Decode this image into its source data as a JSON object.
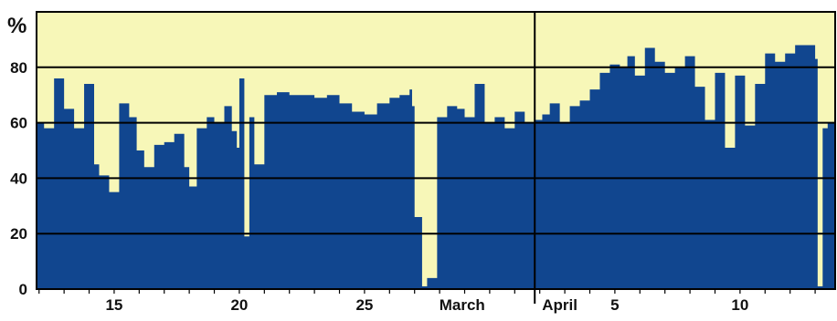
{
  "chart_data": {
    "type": "area",
    "title": "",
    "xlabel": "",
    "ylabel": "%",
    "ylim": [
      0,
      100
    ],
    "yticks": [
      0,
      20,
      40,
      60,
      80
    ],
    "grid": true,
    "colors": {
      "fill": "#11468f",
      "background": "#f7f7b8",
      "grid": "#000000",
      "text": "#111111"
    },
    "x_ticks": [
      {
        "label": "15",
        "day": 15
      },
      {
        "label": "20",
        "day": 20
      },
      {
        "label": "25",
        "day": 25
      },
      {
        "label": "March",
        "day": 28.9
      },
      {
        "label": "April",
        "day": 32.8
      },
      {
        "label": "5",
        "day": 35
      },
      {
        "label": "10",
        "day": 40
      }
    ],
    "month_divider_day": 31.8,
    "x_range": [
      11.9,
      43.8
    ],
    "series": [
      {
        "name": "",
        "x": [
          11.9,
          12.2,
          12.6,
          13.0,
          13.4,
          13.8,
          14.2,
          14.4,
          14.8,
          15.2,
          15.6,
          15.9,
          16.2,
          16.6,
          17.0,
          17.4,
          17.8,
          18.0,
          18.3,
          18.7,
          19.0,
          19.4,
          19.7,
          19.9,
          20.0,
          20.2,
          20.4,
          20.6,
          21.0,
          21.5,
          22.0,
          22.5,
          23.0,
          23.5,
          24.0,
          24.5,
          25.0,
          25.5,
          26.0,
          26.4,
          26.8,
          26.9,
          27.0,
          27.3,
          27.5,
          27.9,
          28.3,
          28.7,
          29.0,
          29.4,
          29.8,
          30.2,
          30.6,
          31.0,
          31.4,
          31.8,
          32.1,
          32.4,
          32.8,
          33.2,
          33.6,
          34.0,
          34.4,
          34.8,
          35.2,
          35.5,
          35.8,
          36.2,
          36.6,
          37.0,
          37.4,
          37.8,
          38.2,
          38.6,
          39.0,
          39.4,
          39.8,
          40.2,
          40.6,
          41.0,
          41.4,
          41.8,
          42.2,
          42.6,
          43.0,
          43.1,
          43.3,
          43.5,
          43.8
        ],
        "values": [
          60,
          58,
          76,
          65,
          58,
          74,
          45,
          41,
          35,
          67,
          62,
          50,
          44,
          52,
          53,
          56,
          44,
          37,
          58,
          62,
          60,
          66,
          57,
          51,
          76,
          19,
          62,
          45,
          70,
          71,
          70,
          70,
          69,
          70,
          67,
          64,
          63,
          67,
          69,
          70,
          72,
          66,
          26,
          1,
          4,
          62,
          66,
          65,
          62,
          74,
          60,
          62,
          58,
          64,
          60,
          61,
          63,
          67,
          60,
          66,
          68,
          72,
          78,
          81,
          80,
          84,
          77,
          87,
          82,
          78,
          80,
          84,
          73,
          61,
          78,
          51,
          77,
          59,
          74,
          85,
          82,
          85,
          88,
          88,
          83,
          1,
          58,
          60,
          64
        ]
      }
    ]
  }
}
